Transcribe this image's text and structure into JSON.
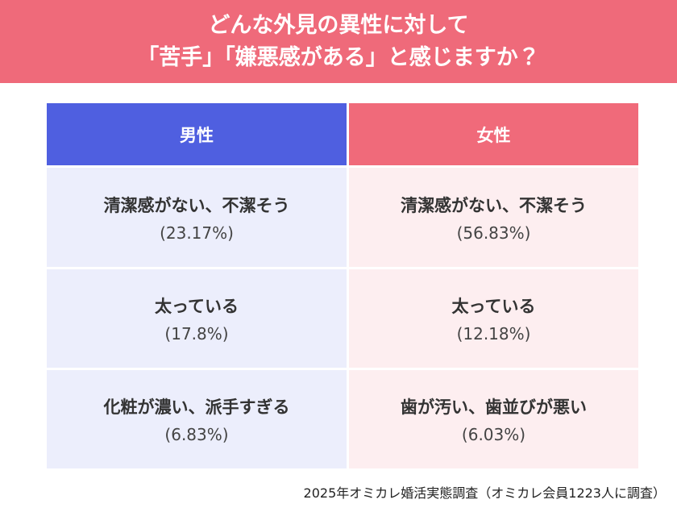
{
  "header": {
    "title": [
      "どんな外見の異性に対して",
      "「苦手」「嫌悪感がある」と感じますか？"
    ]
  },
  "table": {
    "columns": [
      "男性",
      "女性"
    ],
    "rows": [
      [
        {
          "label": "清潔感がない、不潔そう",
          "value": "(23.17%)"
        },
        {
          "label": "清潔感がない、不潔そう",
          "value": "(56.83%)"
        }
      ],
      [
        {
          "label": "太っている",
          "value": "(17.8%)"
        },
        {
          "label": "太っている",
          "value": "(12.18%)"
        }
      ],
      [
        {
          "label": "化粧が濃い、派手すぎる",
          "value": "(6.83%)"
        },
        {
          "label": "歯が汚い、歯並びが悪い",
          "value": "(6.03%)"
        }
      ]
    ]
  },
  "footer": {
    "source": "2025年オミカレ婚活実態調査（オミカレ会員1223人に調査）"
  }
}
